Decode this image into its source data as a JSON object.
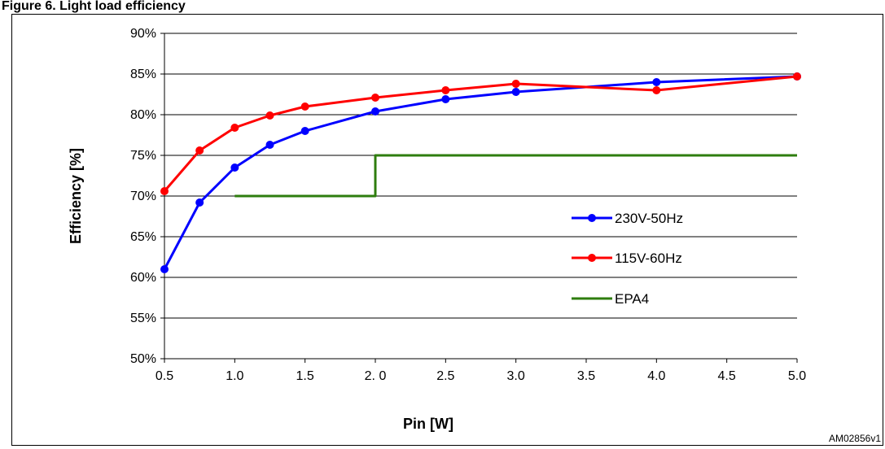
{
  "heading": "Figure 6. Light load efficiency",
  "figure_code": "AM02856v1",
  "chart_data": {
    "type": "line",
    "xlabel": "Pin [W]",
    "ylabel": "Efficiency [%]",
    "xlim": [
      0.5,
      5.0
    ],
    "ylim": [
      50,
      90
    ],
    "x_ticks": [
      0.5,
      1.0,
      1.5,
      2.0,
      2.5,
      3.0,
      3.5,
      4.0,
      4.5,
      5.0
    ],
    "x_tick_labels": [
      "0.5",
      "1.0",
      "1.5",
      "2. 0",
      "2.5",
      "3.0",
      "3.5",
      "4.0",
      "4.5",
      "5.0"
    ],
    "y_ticks": [
      50,
      55,
      60,
      65,
      70,
      75,
      80,
      85,
      90
    ],
    "y_tick_labels": [
      "50%",
      "55%",
      "60%",
      "65%",
      "70%",
      "75%",
      "80%",
      "85%",
      "90%"
    ],
    "grid": "horizontal",
    "legend_position": "right",
    "series": [
      {
        "name": "230V-50Hz",
        "color": "#0000ff",
        "markers": true,
        "step": false,
        "x": [
          0.5,
          0.75,
          1.0,
          1.25,
          1.5,
          2.0,
          2.5,
          3.0,
          4.0,
          5.0
        ],
        "y": [
          61.0,
          69.2,
          73.5,
          76.3,
          78.0,
          80.4,
          81.9,
          82.8,
          84.0,
          84.7
        ]
      },
      {
        "name": "115V-60Hz",
        "color": "#ff0000",
        "markers": true,
        "step": false,
        "x": [
          0.5,
          0.75,
          1.0,
          1.25,
          1.5,
          2.0,
          2.5,
          3.0,
          4.0,
          5.0
        ],
        "y": [
          70.6,
          75.6,
          78.4,
          79.9,
          81.0,
          82.1,
          83.0,
          83.8,
          83.0,
          84.7
        ]
      },
      {
        "name": "EPA4",
        "color": "#2e7d0e",
        "markers": false,
        "step": true,
        "x": [
          1.0,
          2.0,
          2.0,
          5.0
        ],
        "y": [
          70,
          70,
          75,
          75
        ]
      }
    ]
  }
}
